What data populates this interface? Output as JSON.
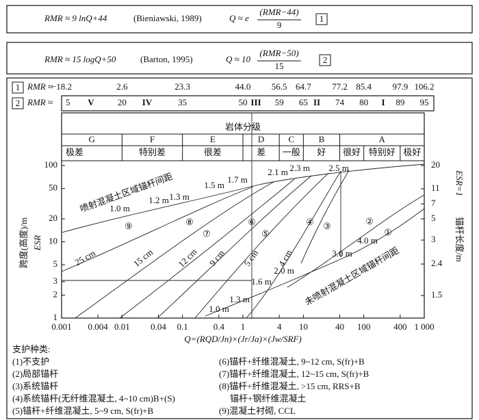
{
  "formulas": [
    {
      "lhs": "RMR ≈ 9 lnQ+44",
      "ref": "(Bieniawski, 1989)",
      "q": "Q ≈ e",
      "numerator": "(RMR−44)",
      "denominator": "9",
      "tag": "1"
    },
    {
      "lhs": "RMR ≈ 15 logQ+50",
      "ref": "(Barton, 1995)",
      "q": "Q ≈ 10",
      "numerator": "(RMR−50)",
      "denominator": "15",
      "tag": "2"
    }
  ],
  "rmr_scales": [
    {
      "tag": "1",
      "label": "RMR ≈",
      "values": [
        "−18.2",
        "2.6",
        "23.3",
        "44.0",
        "56.5",
        "64.7",
        "77.2",
        "85.4",
        "97.9",
        "106.2"
      ]
    },
    {
      "tag": "2",
      "label": "RMR ≈",
      "values": [
        "5",
        "20",
        "35",
        "50",
        "59",
        "65",
        "74",
        "80",
        "89",
        "95"
      ],
      "classes": [
        "V",
        "IV",
        "III",
        "II",
        "I"
      ]
    }
  ],
  "classification": {
    "title": "岩体分级",
    "groups": [
      "G",
      "F",
      "E",
      "D",
      "C",
      "B",
      "A"
    ],
    "qualities": [
      "极差",
      "特别差",
      "很差",
      "差",
      "一般",
      "好",
      "很好",
      "特别好",
      "极好"
    ]
  },
  "x_axis": {
    "label": "Q=(RQD/Jn)×(Jr/Ja)×(Jw/SRF)",
    "ticks": [
      "0.001",
      "0.004",
      "0.01",
      "0.04",
      "0.1",
      "0.4",
      "1",
      "4",
      "10",
      "40",
      "100",
      "400",
      "1 000"
    ]
  },
  "y_axis": {
    "label": "跨度(高度)/m",
    "sublabel": "ESR",
    "ticks": [
      "1",
      "2",
      "3",
      "5",
      "10",
      "20",
      "50",
      "100"
    ]
  },
  "y2_axis": {
    "label": "锚杆长度/m",
    "sublabel": "ESR=1",
    "ticks": [
      "20",
      "11",
      "7",
      "5",
      "3",
      "2.4",
      "1.5"
    ]
  },
  "zone_labels": [
    "喷射混凝土区域锚杆间距",
    "未喷射混凝土区域锚杆间距"
  ],
  "spacing_labels": [
    "1.0 m",
    "1.2 m",
    "1.3 m",
    "1.5 m",
    "1.7 m",
    "2.1 m",
    "2.3 m",
    "2.5 m",
    "1.0 m",
    "1.3 m",
    "1.6 m",
    "2.0 m",
    "3.0 m",
    "4.0 m"
  ],
  "thickness_labels": [
    "25 cm",
    "15 cm",
    "12 cm",
    "9 cm",
    "5 cm",
    "4 cm"
  ],
  "region_labels": [
    "⑨",
    "⑧",
    "⑦",
    "⑥",
    "⑤",
    "④",
    "③",
    "②",
    "①"
  ],
  "legend": {
    "title": "支护种类:",
    "items": [
      "(1)不支护",
      "(2)局部锚杆",
      "(3)系统锚杆",
      "(4)系统锚杆(无纤维混凝土, 4~10 cm)B+(S)",
      "(5)锚杆+纤维混凝土, 5~9 cm, S(fr)+B",
      "(6)锚杆+纤维混凝土, 9~12 cm, S(fr)+B",
      "(7)锚杆+纤维混凝土, 12~15 cm, S(fr)+B",
      "(8)锚杆+纤维混凝土, >15 cm, RRS+B",
      "锚杆+钢纤维混凝土",
      "(9)混凝土衬砌, CCL"
    ]
  }
}
